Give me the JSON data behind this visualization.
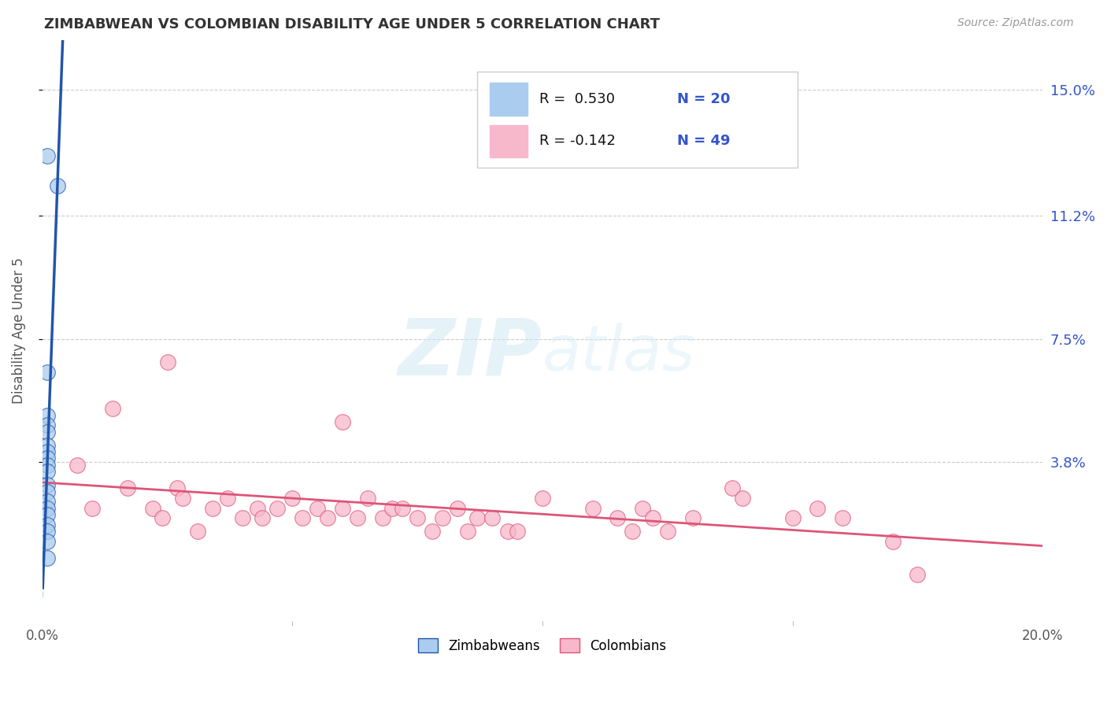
{
  "title": "ZIMBABWEAN VS COLOMBIAN DISABILITY AGE UNDER 5 CORRELATION CHART",
  "source": "Source: ZipAtlas.com",
  "ylabel": "Disability Age Under 5",
  "ytick_labels": [
    "15.0%",
    "11.2%",
    "7.5%",
    "3.8%"
  ],
  "ytick_values": [
    0.15,
    0.112,
    0.075,
    0.038
  ],
  "xlim": [
    0.0,
    0.2
  ],
  "ylim": [
    -0.01,
    0.165
  ],
  "background_color": "#ffffff",
  "grid_color": "#cccccc",
  "zim_color": "#aaccee",
  "col_color": "#f8b8cc",
  "zim_line_color": "#2255aa",
  "col_line_color": "#dd5577",
  "legend_zim_R": "0.530",
  "legend_zim_N": "20",
  "legend_col_R": "-0.142",
  "legend_col_N": "49",
  "legend_text_color": "#3355cc",
  "zim_points": [
    [
      0.001,
      0.13
    ],
    [
      0.003,
      0.121
    ],
    [
      0.001,
      0.065
    ],
    [
      0.001,
      0.052
    ],
    [
      0.001,
      0.049
    ],
    [
      0.001,
      0.047
    ],
    [
      0.001,
      0.043
    ],
    [
      0.001,
      0.041
    ],
    [
      0.001,
      0.039
    ],
    [
      0.001,
      0.037
    ],
    [
      0.001,
      0.035
    ],
    [
      0.001,
      0.031
    ],
    [
      0.001,
      0.029
    ],
    [
      0.001,
      0.026
    ],
    [
      0.001,
      0.024
    ],
    [
      0.001,
      0.022
    ],
    [
      0.001,
      0.019
    ],
    [
      0.001,
      0.017
    ],
    [
      0.001,
      0.014
    ],
    [
      0.001,
      0.009
    ]
  ],
  "col_points": [
    [
      0.007,
      0.037
    ],
    [
      0.01,
      0.024
    ],
    [
      0.014,
      0.054
    ],
    [
      0.017,
      0.03
    ],
    [
      0.022,
      0.024
    ],
    [
      0.024,
      0.021
    ],
    [
      0.027,
      0.03
    ],
    [
      0.028,
      0.027
    ],
    [
      0.031,
      0.017
    ],
    [
      0.034,
      0.024
    ],
    [
      0.037,
      0.027
    ],
    [
      0.04,
      0.021
    ],
    [
      0.043,
      0.024
    ],
    [
      0.044,
      0.021
    ],
    [
      0.047,
      0.024
    ],
    [
      0.05,
      0.027
    ],
    [
      0.052,
      0.021
    ],
    [
      0.055,
      0.024
    ],
    [
      0.057,
      0.021
    ],
    [
      0.06,
      0.024
    ],
    [
      0.063,
      0.021
    ],
    [
      0.065,
      0.027
    ],
    [
      0.068,
      0.021
    ],
    [
      0.07,
      0.024
    ],
    [
      0.072,
      0.024
    ],
    [
      0.075,
      0.021
    ],
    [
      0.078,
      0.017
    ],
    [
      0.08,
      0.021
    ],
    [
      0.083,
      0.024
    ],
    [
      0.085,
      0.017
    ],
    [
      0.087,
      0.021
    ],
    [
      0.09,
      0.021
    ],
    [
      0.093,
      0.017
    ],
    [
      0.095,
      0.017
    ],
    [
      0.1,
      0.027
    ],
    [
      0.11,
      0.024
    ],
    [
      0.115,
      0.021
    ],
    [
      0.118,
      0.017
    ],
    [
      0.12,
      0.024
    ],
    [
      0.122,
      0.021
    ],
    [
      0.125,
      0.017
    ],
    [
      0.13,
      0.021
    ],
    [
      0.138,
      0.03
    ],
    [
      0.14,
      0.027
    ],
    [
      0.15,
      0.021
    ],
    [
      0.155,
      0.024
    ],
    [
      0.16,
      0.021
    ],
    [
      0.17,
      0.014
    ],
    [
      0.175,
      0.004
    ]
  ],
  "col_outlier_points": [
    [
      0.025,
      0.068
    ],
    [
      0.06,
      0.05
    ]
  ]
}
